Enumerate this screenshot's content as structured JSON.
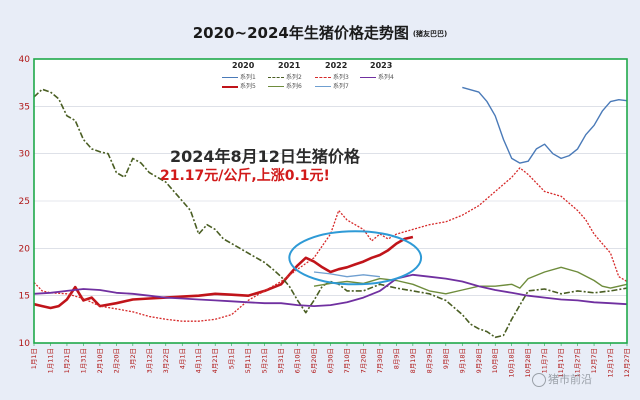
{
  "title": "2020~2024年生猪价格走势图",
  "subtitle": "(猪友巴巴)",
  "annotation_title": "2024年8月12日生猪价格",
  "annotation_value": "21.17元/公斤,上涨0.1元!",
  "watermark": "猪市前沿",
  "legend_years": [
    "2020",
    "2021",
    "2022",
    "2023"
  ],
  "colors": {
    "background": "#e8edf7",
    "plot_bg": "#ffffff",
    "plot_border": "#1fa84a",
    "grid": "#c9cfd9",
    "tick_text": "#b01818",
    "ellipse": "#2e9ad6"
  },
  "chart_data": {
    "type": "line",
    "ylim": [
      10,
      40
    ],
    "y_ticks": [
      10,
      15,
      20,
      25,
      30,
      35,
      40
    ],
    "x_labels": [
      "1月1日",
      "1月11日",
      "1月21日",
      "1月31日",
      "2月10日",
      "2月20日",
      "3月2日",
      "3月12日",
      "3月22日",
      "4月1日",
      "4月11日",
      "4月21日",
      "5月1日",
      "5月11日",
      "5月21日",
      "5月31日",
      "6月10日",
      "6月20日",
      "6月30日",
      "7月10日",
      "7月20日",
      "7月30日",
      "8月9日",
      "8月19日",
      "8月29日",
      "9月8日",
      "9月18日",
      "9月28日",
      "10月8日",
      "10月18日",
      "10月28日",
      "11月7日",
      "11月17日",
      "11月27日",
      "12月7日",
      "12月17日",
      "12月27日"
    ],
    "series": [
      {
        "name": "系列1",
        "color": "#4a7ab8",
        "dash": "",
        "width": 1.4,
        "legend_col": 0,
        "legend_row": 0,
        "points": [
          [
            26,
            37.0
          ],
          [
            27,
            36.5
          ],
          [
            27.5,
            35.5
          ],
          [
            28,
            34.0
          ],
          [
            28.5,
            31.5
          ],
          [
            29,
            29.5
          ],
          [
            29.5,
            29.0
          ],
          [
            30,
            29.2
          ],
          [
            30.5,
            30.5
          ],
          [
            31,
            31.0
          ],
          [
            31.5,
            30.0
          ],
          [
            32,
            29.5
          ],
          [
            32.5,
            29.8
          ],
          [
            33,
            30.5
          ],
          [
            33.5,
            32.0
          ],
          [
            34,
            33.0
          ],
          [
            34.5,
            34.5
          ],
          [
            35,
            35.5
          ],
          [
            35.5,
            35.7
          ],
          [
            36,
            35.6
          ]
        ]
      },
      {
        "name": "系列5",
        "color": "#c0141a",
        "dash": "",
        "width": 2.6,
        "legend_col": 0,
        "legend_row": 1,
        "points": [
          [
            0,
            14.1
          ],
          [
            0.5,
            13.9
          ],
          [
            1,
            13.7
          ],
          [
            1.5,
            13.9
          ],
          [
            2,
            14.6
          ],
          [
            2.5,
            15.9
          ],
          [
            3,
            14.5
          ],
          [
            3.5,
            14.8
          ],
          [
            4,
            13.9
          ],
          [
            5,
            14.2
          ],
          [
            6,
            14.6
          ],
          [
            7,
            14.7
          ],
          [
            8,
            14.8
          ],
          [
            9,
            14.9
          ],
          [
            10,
            15.0
          ],
          [
            11,
            15.2
          ],
          [
            12,
            15.1
          ],
          [
            13,
            15.0
          ],
          [
            14,
            15.5
          ],
          [
            15,
            16.2
          ],
          [
            15.5,
            17.2
          ],
          [
            16,
            18.2
          ],
          [
            16.5,
            19.0
          ],
          [
            17,
            18.6
          ],
          [
            17.5,
            18.0
          ],
          [
            18,
            17.5
          ],
          [
            18.5,
            17.8
          ],
          [
            19,
            18.0
          ],
          [
            19.5,
            18.3
          ],
          [
            20,
            18.6
          ],
          [
            20.5,
            19.0
          ],
          [
            21,
            19.3
          ],
          [
            21.5,
            19.8
          ],
          [
            22,
            20.5
          ],
          [
            22.5,
            21.0
          ],
          [
            23,
            21.2
          ]
        ]
      },
      {
        "name": "系列2",
        "color": "#4a5e23",
        "dash": "6,2,2,2",
        "width": 1.6,
        "legend_col": 1,
        "legend_row": 0,
        "points": [
          [
            0,
            36.0
          ],
          [
            0.5,
            36.8
          ],
          [
            1,
            36.5
          ],
          [
            1.5,
            35.8
          ],
          [
            2,
            34.0
          ],
          [
            2.5,
            33.5
          ],
          [
            3,
            31.5
          ],
          [
            3.5,
            30.5
          ],
          [
            4,
            30.2
          ],
          [
            4.5,
            30.0
          ],
          [
            5,
            28.0
          ],
          [
            5.5,
            27.5
          ],
          [
            6,
            29.5
          ],
          [
            6.5,
            29.0
          ],
          [
            7,
            28.0
          ],
          [
            7.5,
            27.5
          ],
          [
            8,
            27.0
          ],
          [
            8.5,
            26.0
          ],
          [
            9,
            25.0
          ],
          [
            9.5,
            24.0
          ],
          [
            10,
            21.5
          ],
          [
            10.5,
            22.5
          ],
          [
            11,
            22.0
          ],
          [
            11.5,
            21.0
          ],
          [
            12,
            20.5
          ],
          [
            12.5,
            20.0
          ],
          [
            13,
            19.5
          ],
          [
            13.5,
            19.0
          ],
          [
            14,
            18.5
          ],
          [
            14.5,
            17.8
          ],
          [
            15,
            17.0
          ],
          [
            15.5,
            16.0
          ],
          [
            16,
            14.5
          ],
          [
            16.5,
            13.2
          ],
          [
            17,
            14.5
          ],
          [
            17.5,
            16.0
          ],
          [
            18,
            16.5
          ],
          [
            18.5,
            16.2
          ],
          [
            19,
            15.5
          ],
          [
            20,
            15.5
          ],
          [
            21,
            16.2
          ],
          [
            22,
            15.8
          ],
          [
            23,
            15.5
          ],
          [
            24,
            15.2
          ],
          [
            25,
            14.5
          ],
          [
            26,
            13.0
          ],
          [
            26.5,
            12.0
          ],
          [
            27,
            11.5
          ],
          [
            27.5,
            11.2
          ],
          [
            28,
            10.6
          ],
          [
            28.5,
            10.8
          ],
          [
            29,
            12.5
          ],
          [
            29.5,
            14.0
          ],
          [
            30,
            15.5
          ],
          [
            31,
            15.7
          ],
          [
            32,
            15.2
          ],
          [
            33,
            15.5
          ],
          [
            34,
            15.3
          ],
          [
            35,
            15.5
          ],
          [
            36,
            15.8
          ]
        ]
      },
      {
        "name": "系列6",
        "color": "#6e8c3c",
        "dash": "",
        "width": 1.4,
        "legend_col": 1,
        "legend_row": 1,
        "points": [
          [
            17,
            16.0
          ],
          [
            18,
            16.3
          ],
          [
            19,
            16.5
          ],
          [
            20,
            16.3
          ],
          [
            21,
            16.8
          ],
          [
            22,
            16.6
          ],
          [
            23,
            16.2
          ],
          [
            24,
            15.5
          ],
          [
            25,
            15.2
          ],
          [
            26,
            15.6
          ],
          [
            27,
            16.0
          ],
          [
            28,
            16.0
          ],
          [
            29,
            16.2
          ],
          [
            29.5,
            15.8
          ],
          [
            30,
            16.8
          ],
          [
            31,
            17.5
          ],
          [
            32,
            18.0
          ],
          [
            33,
            17.5
          ],
          [
            34,
            16.6
          ],
          [
            34.5,
            16.0
          ],
          [
            35,
            15.8
          ],
          [
            35.5,
            16.0
          ],
          [
            36,
            16.2
          ]
        ]
      },
      {
        "name": "系列3",
        "color": "#d62a2a",
        "dash": "2,1.5",
        "width": 1.3,
        "legend_col": 2,
        "legend_row": 0,
        "points": [
          [
            0,
            16.4
          ],
          [
            0.5,
            15.5
          ],
          [
            1,
            15.3
          ],
          [
            2,
            15.2
          ],
          [
            3,
            14.7
          ],
          [
            4,
            13.9
          ],
          [
            5,
            13.6
          ],
          [
            6,
            13.3
          ],
          [
            7,
            12.8
          ],
          [
            8,
            12.5
          ],
          [
            9,
            12.3
          ],
          [
            10,
            12.3
          ],
          [
            11,
            12.5
          ],
          [
            12,
            13.0
          ],
          [
            13,
            14.5
          ],
          [
            14,
            15.5
          ],
          [
            15,
            16.5
          ],
          [
            16,
            17.8
          ],
          [
            17,
            19.0
          ],
          [
            18,
            21.5
          ],
          [
            18.5,
            24.0
          ],
          [
            19,
            23.0
          ],
          [
            19.5,
            22.5
          ],
          [
            20,
            22.0
          ],
          [
            20.5,
            20.8
          ],
          [
            21,
            21.5
          ],
          [
            21.5,
            21.0
          ],
          [
            22,
            21.5
          ],
          [
            23,
            22.0
          ],
          [
            24,
            22.5
          ],
          [
            25,
            22.8
          ],
          [
            26,
            23.5
          ],
          [
            27,
            24.5
          ],
          [
            28,
            26.0
          ],
          [
            29,
            27.5
          ],
          [
            29.5,
            28.5
          ],
          [
            30,
            27.8
          ],
          [
            31,
            26.0
          ],
          [
            32,
            25.5
          ],
          [
            33,
            24.0
          ],
          [
            33.5,
            23.0
          ],
          [
            34,
            21.5
          ],
          [
            35,
            19.5
          ],
          [
            35.5,
            17.0
          ],
          [
            36,
            16.5
          ]
        ]
      },
      {
        "name": "系列7",
        "color": "#6f9fd0",
        "dash": "",
        "width": 1.3,
        "legend_col": 2,
        "legend_row": 1,
        "points": [
          [
            17,
            17.5
          ],
          [
            18,
            17.3
          ],
          [
            19,
            17.0
          ],
          [
            20,
            17.2
          ],
          [
            21,
            17.0
          ]
        ]
      },
      {
        "name": "系列4",
        "color": "#7030a0",
        "dash": "",
        "width": 1.8,
        "legend_col": 3,
        "legend_row": 0,
        "points": [
          [
            0,
            15.2
          ],
          [
            1,
            15.3
          ],
          [
            2,
            15.5
          ],
          [
            3,
            15.7
          ],
          [
            4,
            15.6
          ],
          [
            5,
            15.3
          ],
          [
            6,
            15.2
          ],
          [
            7,
            15.0
          ],
          [
            8,
            14.8
          ],
          [
            9,
            14.7
          ],
          [
            10,
            14.6
          ],
          [
            11,
            14.5
          ],
          [
            12,
            14.4
          ],
          [
            13,
            14.3
          ],
          [
            14,
            14.2
          ],
          [
            15,
            14.2
          ],
          [
            16,
            14.0
          ],
          [
            17,
            13.9
          ],
          [
            18,
            14.0
          ],
          [
            19,
            14.3
          ],
          [
            20,
            14.8
          ],
          [
            21,
            15.5
          ],
          [
            22,
            16.8
          ],
          [
            23,
            17.2
          ],
          [
            24,
            17.0
          ],
          [
            25,
            16.8
          ],
          [
            26,
            16.5
          ],
          [
            27,
            16.0
          ],
          [
            28,
            15.6
          ],
          [
            29,
            15.3
          ],
          [
            30,
            15.0
          ],
          [
            31,
            14.8
          ],
          [
            32,
            14.6
          ],
          [
            33,
            14.5
          ],
          [
            34,
            14.3
          ],
          [
            35,
            14.2
          ],
          [
            36,
            14.1
          ]
        ]
      }
    ],
    "highlight_ellipse": {
      "cx": 19.5,
      "cy": 19.0,
      "rx": 4.0,
      "ry": 2.8
    }
  }
}
